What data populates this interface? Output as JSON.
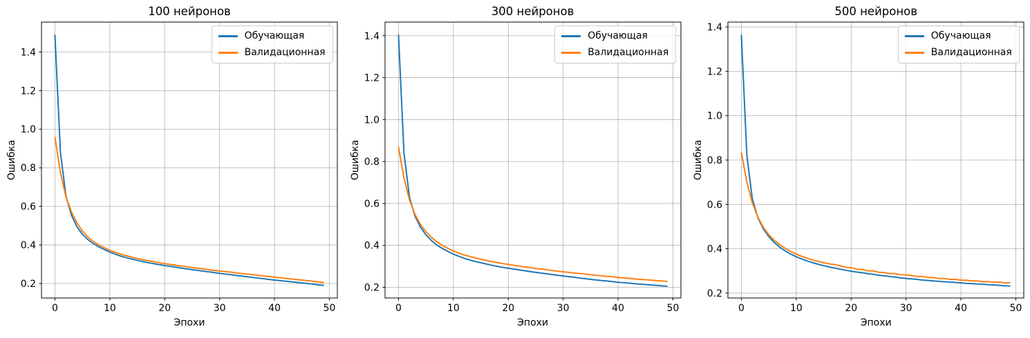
{
  "figure": {
    "background": "#ffffff",
    "grid_color": "#b0b0b0",
    "spine_color": "#000000",
    "text_color": "#000000"
  },
  "chart_data": [
    {
      "type": "line",
      "title": "100 нейронов",
      "xlabel": "Эпохи",
      "ylabel": "Ошибка",
      "grid": true,
      "legend_position": "upper right",
      "xlim": [
        -2.45,
        51.45
      ],
      "ylim": [
        0.125,
        1.555
      ],
      "xticks": [
        0,
        10,
        20,
        30,
        40,
        50
      ],
      "yticks": [
        0.2,
        0.4,
        0.6,
        0.8,
        1.0,
        1.2,
        1.4
      ],
      "x": [
        0,
        1,
        2,
        3,
        4,
        5,
        6,
        7,
        8,
        9,
        10,
        11,
        12,
        13,
        14,
        15,
        16,
        17,
        18,
        19,
        20,
        21,
        22,
        23,
        24,
        25,
        26,
        27,
        28,
        29,
        30,
        31,
        32,
        33,
        34,
        35,
        36,
        37,
        38,
        39,
        40,
        41,
        42,
        43,
        44,
        45,
        46,
        47,
        48,
        49
      ],
      "series": [
        {
          "id": "train",
          "name": "Обучающая",
          "color": "#1f77b4",
          "values": [
            1.49,
            0.88,
            0.655,
            0.555,
            0.495,
            0.455,
            0.428,
            0.407,
            0.39,
            0.376,
            0.363,
            0.352,
            0.342,
            0.334,
            0.327,
            0.32,
            0.314,
            0.308,
            0.303,
            0.298,
            0.293,
            0.289,
            0.285,
            0.28,
            0.276,
            0.272,
            0.268,
            0.264,
            0.261,
            0.257,
            0.253,
            0.249,
            0.246,
            0.242,
            0.239,
            0.235,
            0.232,
            0.228,
            0.225,
            0.221,
            0.218,
            0.215,
            0.212,
            0.209,
            0.206,
            0.203,
            0.2,
            0.197,
            0.193,
            0.19
          ]
        },
        {
          "id": "val",
          "name": "Валидационная",
          "color": "#ff7f0e",
          "values": [
            0.96,
            0.775,
            0.65,
            0.572,
            0.515,
            0.472,
            0.442,
            0.418,
            0.4,
            0.385,
            0.372,
            0.362,
            0.352,
            0.344,
            0.337,
            0.33,
            0.324,
            0.318,
            0.313,
            0.308,
            0.303,
            0.299,
            0.295,
            0.291,
            0.287,
            0.283,
            0.279,
            0.276,
            0.272,
            0.268,
            0.265,
            0.262,
            0.259,
            0.255,
            0.252,
            0.249,
            0.246,
            0.243,
            0.239,
            0.236,
            0.233,
            0.23,
            0.227,
            0.224,
            0.221,
            0.218,
            0.215,
            0.212,
            0.208,
            0.205
          ]
        }
      ]
    },
    {
      "type": "line",
      "title": "300 нейронов",
      "xlabel": "Эпохи",
      "ylabel": "Ошибка",
      "grid": true,
      "legend_position": "upper right",
      "xlim": [
        -2.45,
        51.45
      ],
      "ylim": [
        0.149,
        1.465
      ],
      "xticks": [
        0,
        10,
        20,
        30,
        40,
        50
      ],
      "yticks": [
        0.2,
        0.4,
        0.6,
        0.8,
        1.0,
        1.2,
        1.4
      ],
      "x": [
        0,
        1,
        2,
        3,
        4,
        5,
        6,
        7,
        8,
        9,
        10,
        11,
        12,
        13,
        14,
        15,
        16,
        17,
        18,
        19,
        20,
        21,
        22,
        23,
        24,
        25,
        26,
        27,
        28,
        29,
        30,
        31,
        32,
        33,
        34,
        35,
        36,
        37,
        38,
        39,
        40,
        41,
        42,
        43,
        44,
        45,
        46,
        47,
        48,
        49
      ],
      "series": [
        {
          "id": "train",
          "name": "Обучающая",
          "color": "#1f77b4",
          "values": [
            1.405,
            0.84,
            0.63,
            0.54,
            0.487,
            0.45,
            0.423,
            0.402,
            0.385,
            0.371,
            0.358,
            0.348,
            0.338,
            0.33,
            0.323,
            0.317,
            0.311,
            0.305,
            0.3,
            0.295,
            0.291,
            0.287,
            0.283,
            0.279,
            0.275,
            0.271,
            0.268,
            0.264,
            0.261,
            0.257,
            0.254,
            0.251,
            0.248,
            0.244,
            0.241,
            0.238,
            0.235,
            0.232,
            0.23,
            0.227,
            0.224,
            0.222,
            0.22,
            0.217,
            0.215,
            0.213,
            0.211,
            0.209,
            0.207,
            0.205
          ]
        },
        {
          "id": "val",
          "name": "Валидационная",
          "color": "#ff7f0e",
          "values": [
            0.87,
            0.72,
            0.617,
            0.548,
            0.5,
            0.465,
            0.438,
            0.417,
            0.4,
            0.386,
            0.373,
            0.363,
            0.354,
            0.347,
            0.34,
            0.334,
            0.328,
            0.323,
            0.318,
            0.313,
            0.309,
            0.305,
            0.301,
            0.297,
            0.294,
            0.29,
            0.287,
            0.284,
            0.28,
            0.277,
            0.274,
            0.271,
            0.268,
            0.266,
            0.263,
            0.26,
            0.257,
            0.255,
            0.252,
            0.25,
            0.247,
            0.245,
            0.243,
            0.24,
            0.238,
            0.236,
            0.234,
            0.232,
            0.23,
            0.228
          ]
        }
      ]
    },
    {
      "type": "line",
      "title": "500 нейронов",
      "xlabel": "Эпохи",
      "ylabel": "Ошибка",
      "grid": true,
      "legend_position": "upper right",
      "xlim": [
        -2.45,
        51.45
      ],
      "ylim": [
        0.178,
        1.422
      ],
      "xticks": [
        0,
        10,
        20,
        30,
        40,
        50
      ],
      "yticks": [
        0.2,
        0.4,
        0.6,
        0.8,
        1.0,
        1.2,
        1.4
      ],
      "x": [
        0,
        1,
        2,
        3,
        4,
        5,
        6,
        7,
        8,
        9,
        10,
        11,
        12,
        13,
        14,
        15,
        16,
        17,
        18,
        19,
        20,
        21,
        22,
        23,
        24,
        25,
        26,
        27,
        28,
        29,
        30,
        31,
        32,
        33,
        34,
        35,
        36,
        37,
        38,
        39,
        40,
        41,
        42,
        43,
        44,
        45,
        46,
        47,
        48,
        49
      ],
      "series": [
        {
          "id": "train",
          "name": "Обучающая",
          "color": "#1f77b4",
          "values": [
            1.365,
            0.82,
            0.625,
            0.54,
            0.49,
            0.455,
            0.428,
            0.407,
            0.39,
            0.376,
            0.364,
            0.354,
            0.345,
            0.337,
            0.33,
            0.324,
            0.318,
            0.313,
            0.308,
            0.303,
            0.299,
            0.295,
            0.292,
            0.288,
            0.285,
            0.281,
            0.278,
            0.275,
            0.272,
            0.269,
            0.266,
            0.264,
            0.262,
            0.259,
            0.257,
            0.255,
            0.253,
            0.251,
            0.25,
            0.248,
            0.246,
            0.244,
            0.243,
            0.241,
            0.24,
            0.238,
            0.237,
            0.235,
            0.233,
            0.232
          ]
        },
        {
          "id": "val",
          "name": "Валидационная",
          "color": "#ff7f0e",
          "values": [
            0.835,
            0.7,
            0.607,
            0.543,
            0.497,
            0.463,
            0.438,
            0.418,
            0.402,
            0.388,
            0.376,
            0.366,
            0.357,
            0.35,
            0.343,
            0.337,
            0.332,
            0.329,
            0.323,
            0.316,
            0.315,
            0.308,
            0.307,
            0.301,
            0.3,
            0.294,
            0.293,
            0.288,
            0.288,
            0.283,
            0.282,
            0.28,
            0.275,
            0.275,
            0.271,
            0.27,
            0.266,
            0.266,
            0.262,
            0.262,
            0.258,
            0.258,
            0.255,
            0.255,
            0.251,
            0.252,
            0.249,
            0.25,
            0.246,
            0.247
          ]
        }
      ]
    }
  ]
}
